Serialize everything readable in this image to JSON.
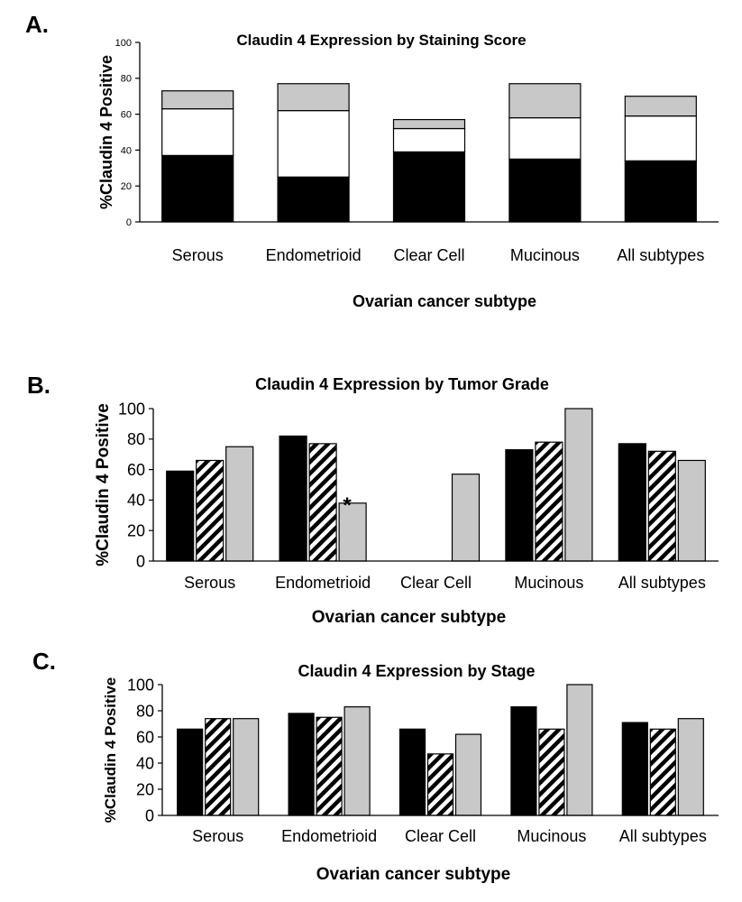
{
  "chart_data": [
    {
      "panel": "A.",
      "type": "bar",
      "stacked": true,
      "title": "Claudin 4 Expression by Staining Score",
      "xlabel": "Ovarian cancer subtype",
      "ylabel": "%Claudin 4 Positive",
      "ylim": [
        0,
        100
      ],
      "yticks": [
        0,
        20,
        40,
        60,
        80,
        100
      ],
      "categories": [
        "Serous",
        "Endometrioid",
        "Clear Cell",
        "Mucinous",
        "All subtypes"
      ],
      "series": [
        {
          "name": "bottom (black)",
          "color": "#000000",
          "values": [
            37,
            25,
            39,
            35,
            34
          ]
        },
        {
          "name": "middle (white)",
          "color": "#ffffff",
          "values": [
            26,
            37,
            13,
            23,
            25
          ]
        },
        {
          "name": "top (gray)",
          "color": "#c8c8c8",
          "values": [
            10,
            15,
            5,
            19,
            11
          ]
        }
      ],
      "annotations": []
    },
    {
      "panel": "B.",
      "type": "bar",
      "stacked": false,
      "title": "Claudin 4 Expression by Tumor Grade",
      "xlabel": "Ovarian cancer subtype",
      "ylabel": "%Claudin 4 Positive",
      "ylim": [
        0,
        100
      ],
      "yticks": [
        0,
        20,
        40,
        60,
        80,
        100
      ],
      "categories": [
        "Serous",
        "Endometrioid",
        "Clear Cell",
        "Mucinous",
        "All subtypes"
      ],
      "series": [
        {
          "name": "series 1 (black)",
          "pattern": "solid-black",
          "values": [
            59,
            82,
            null,
            73,
            77
          ]
        },
        {
          "name": "series 2 (hatched)",
          "pattern": "hatch",
          "values": [
            66,
            77,
            null,
            78,
            72
          ]
        },
        {
          "name": "series 3 (gray)",
          "pattern": "gray",
          "values": [
            75,
            38,
            57,
            100,
            66
          ]
        }
      ],
      "annotations": [
        {
          "category": "Endometrioid",
          "series": 2,
          "text": "*"
        }
      ]
    },
    {
      "panel": "C.",
      "type": "bar",
      "stacked": false,
      "title": "Claudin 4 Expression by Stage",
      "xlabel": "Ovarian cancer subtype",
      "ylabel": "%Claudin 4 Positive",
      "ylim": [
        0,
        100
      ],
      "yticks": [
        0,
        20,
        40,
        60,
        80,
        100
      ],
      "categories": [
        "Serous",
        "Endometrioid",
        "Clear Cell",
        "Mucinous",
        "All subtypes"
      ],
      "series": [
        {
          "name": "series 1 (black)",
          "pattern": "solid-black",
          "values": [
            66,
            78,
            66,
            83,
            71
          ]
        },
        {
          "name": "series 2 (hatched)",
          "pattern": "hatch",
          "values": [
            74,
            75,
            47,
            66,
            66
          ]
        },
        {
          "name": "series 3 (gray)",
          "pattern": "gray",
          "values": [
            74,
            83,
            62,
            100,
            74
          ]
        }
      ],
      "annotations": []
    }
  ]
}
